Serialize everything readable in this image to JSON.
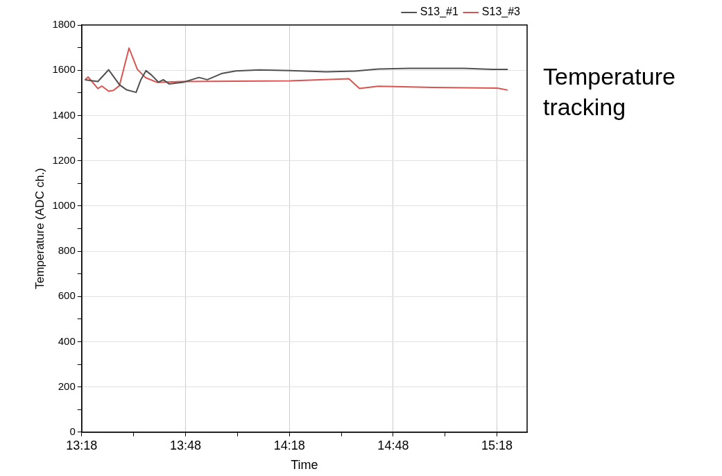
{
  "chart_data": {
    "type": "line",
    "title": "Temperature tracking",
    "xlabel": "Time",
    "ylabel": "Temperature (ADC ch.)",
    "xlim": [
      13.3,
      15.445
    ],
    "xticks": [
      {
        "value": 13.3,
        "label": "13:18"
      },
      {
        "value": 13.55,
        "label": null
      },
      {
        "value": 13.8,
        "label": "13:48"
      },
      {
        "value": 14.05,
        "label": null
      },
      {
        "value": 14.3,
        "label": "14:18"
      },
      {
        "value": 14.55,
        "label": null
      },
      {
        "value": 14.8,
        "label": "14:48"
      },
      {
        "value": 15.05,
        "label": null
      },
      {
        "value": 15.3,
        "label": "15:18"
      }
    ],
    "ylim": [
      0,
      1800
    ],
    "yticks": [
      0,
      {
        "value": 100,
        "label": null
      },
      200,
      {
        "value": 300,
        "label": null
      },
      400,
      {
        "value": 500,
        "label": null
      },
      600,
      {
        "value": 700,
        "label": null
      },
      800,
      {
        "value": 900,
        "label": null
      },
      1000,
      {
        "value": 1100,
        "label": null
      },
      1200,
      {
        "value": 1300,
        "label": null
      },
      1400,
      {
        "value": 1500,
        "label": null
      },
      1600,
      {
        "value": 1700,
        "label": null
      },
      1800
    ],
    "grid": true,
    "legend": "top right",
    "marker": "none",
    "line_style": "solid",
    "series": [
      {
        "name": "S13_#1",
        "color": "#505050",
        "x": [
          13.316,
          13.378,
          13.43,
          13.482,
          13.517,
          13.562,
          13.585,
          13.61,
          13.637,
          13.67,
          13.693,
          13.722,
          13.79,
          13.865,
          13.905,
          13.973,
          14.042,
          14.157,
          14.305,
          14.477,
          14.615,
          14.728,
          14.878,
          15.14,
          15.278,
          15.352
        ],
        "values": [
          1558,
          1550,
          1602,
          1536,
          1513,
          1502,
          1558,
          1598,
          1578,
          1547,
          1558,
          1539,
          1547,
          1568,
          1558,
          1585,
          1597,
          1601,
          1598,
          1593,
          1596,
          1605,
          1608,
          1608,
          1604,
          1604
        ]
      },
      {
        "name": "S13_#3",
        "color": "#d9534f",
        "x": [
          13.316,
          13.331,
          13.378,
          13.397,
          13.43,
          13.453,
          13.482,
          13.528,
          13.568,
          13.608,
          13.665,
          13.79,
          14.305,
          14.587,
          14.638,
          14.728,
          14.992,
          15.302,
          15.352
        ],
        "values": [
          1558,
          1570,
          1519,
          1530,
          1507,
          1511,
          1532,
          1698,
          1604,
          1567,
          1546,
          1550,
          1553,
          1562,
          1519,
          1529,
          1524,
          1521,
          1512
        ]
      }
    ]
  }
}
